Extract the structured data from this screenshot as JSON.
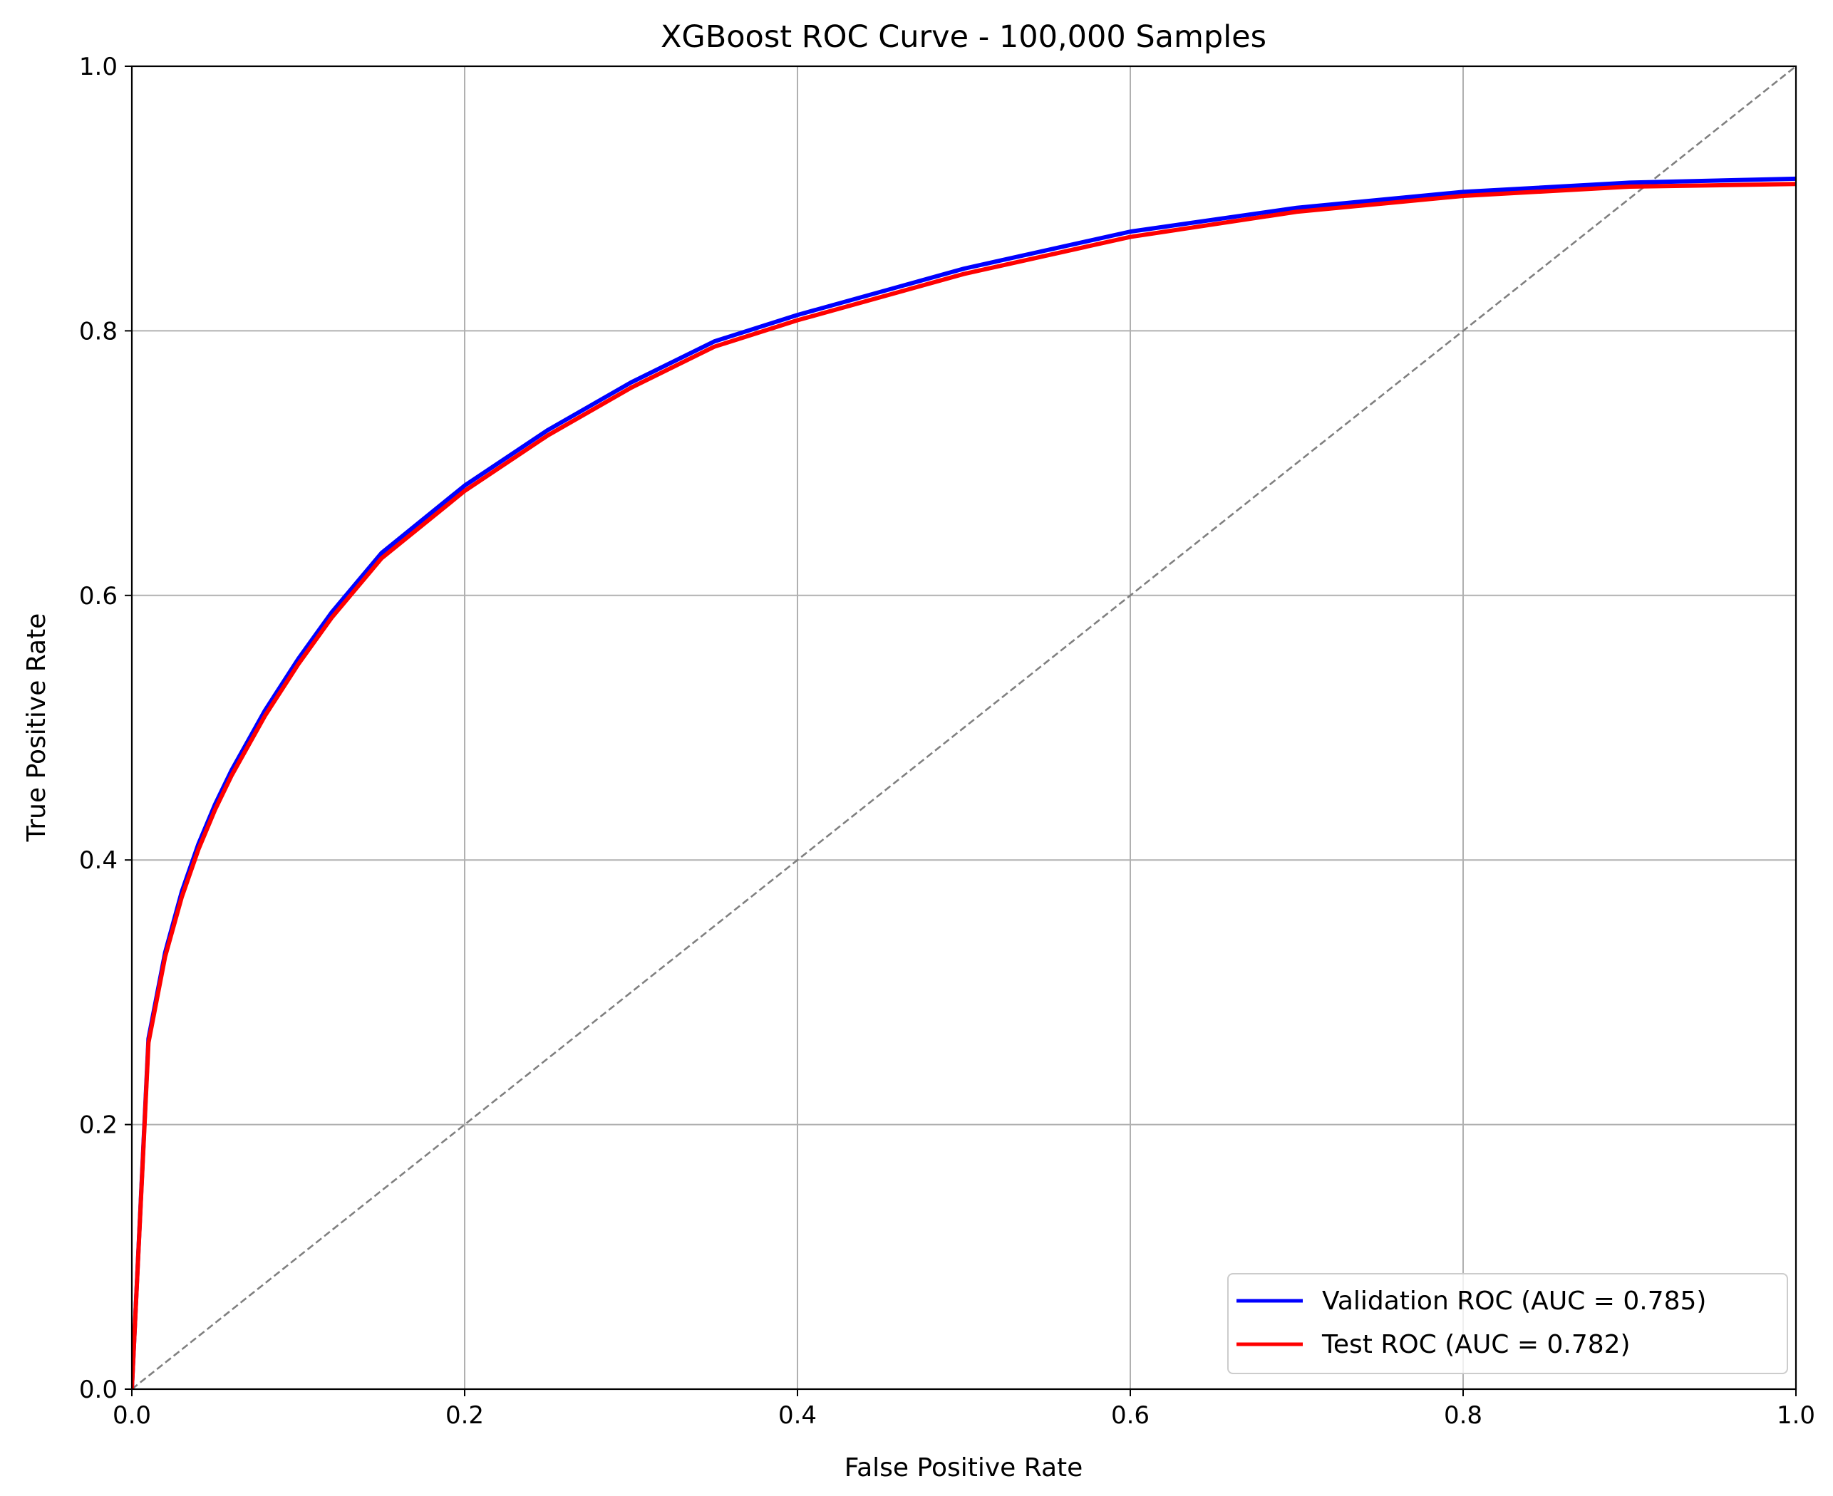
{
  "chart_data": {
    "type": "line",
    "title": "XGBoost ROC Curve - 100,000 Samples",
    "xlabel": "False Positive Rate",
    "ylabel": "True Positive Rate",
    "xlim": [
      0.0,
      1.0
    ],
    "ylim": [
      0.0,
      1.0
    ],
    "xticks": [
      "0.0",
      "0.2",
      "0.4",
      "0.6",
      "0.8",
      "1.0"
    ],
    "yticks": [
      "0.0",
      "0.2",
      "0.4",
      "0.6",
      "0.8",
      "1.0"
    ],
    "grid": true,
    "legend_position": "bottom-right",
    "series": [
      {
        "name": "Validation ROC (AUC = 0.785)",
        "color": "#0000ff",
        "x": [
          0.0,
          0.01,
          0.02,
          0.03,
          0.04,
          0.05,
          0.06,
          0.08,
          0.1,
          0.12,
          0.15,
          0.2,
          0.25,
          0.3,
          0.35,
          0.4,
          0.5,
          0.6,
          0.7,
          0.8,
          0.9,
          1.0
        ],
        "y": [
          0.0,
          0.265,
          0.33,
          0.376,
          0.412,
          0.442,
          0.468,
          0.513,
          0.552,
          0.587,
          0.632,
          0.683,
          0.725,
          0.761,
          0.792,
          0.812,
          0.847,
          0.875,
          0.893,
          0.905,
          0.912,
          0.915
        ]
      },
      {
        "name": "Test ROC (AUC = 0.782)",
        "color": "#ff0000",
        "x": [
          0.0,
          0.01,
          0.02,
          0.03,
          0.04,
          0.05,
          0.06,
          0.08,
          0.1,
          0.12,
          0.15,
          0.2,
          0.25,
          0.3,
          0.35,
          0.4,
          0.5,
          0.6,
          0.7,
          0.8,
          0.9,
          1.0
        ],
        "y": [
          0.0,
          0.262,
          0.327,
          0.372,
          0.408,
          0.438,
          0.464,
          0.509,
          0.548,
          0.583,
          0.628,
          0.679,
          0.721,
          0.757,
          0.788,
          0.808,
          0.843,
          0.871,
          0.89,
          0.902,
          0.909,
          0.911
        ]
      },
      {
        "name": "",
        "color": "#808080",
        "style": "dashed",
        "x": [
          0.0,
          1.0
        ],
        "y": [
          0.0,
          1.0
        ]
      }
    ]
  }
}
